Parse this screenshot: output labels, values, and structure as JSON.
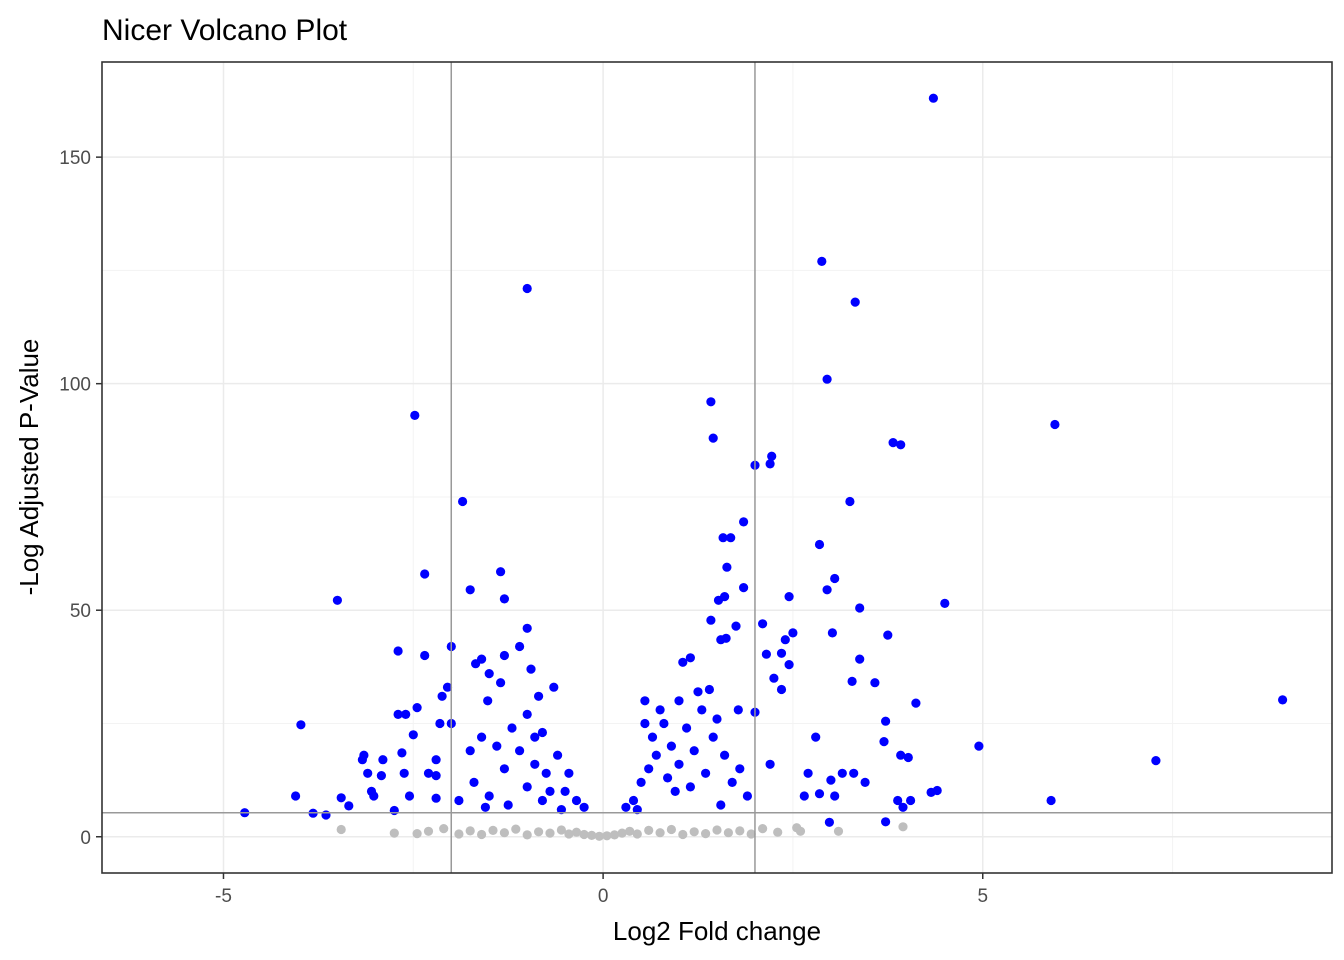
{
  "chart_data": {
    "type": "scatter",
    "title": "Nicer Volcano Plot",
    "xlabel": "Log2 Fold change",
    "ylabel": "-Log Adjusted P-Value",
    "xlim": [
      -6.6,
      9.6
    ],
    "ylim": [
      -8,
      171
    ],
    "x_ticks": [
      -5,
      0,
      5
    ],
    "y_ticks": [
      0,
      50,
      100,
      150
    ],
    "x_minor_grid": [
      -7.5,
      -2.5,
      2.5,
      7.5
    ],
    "y_minor_grid": [
      25,
      75,
      125
    ],
    "grid": true,
    "legend": "none",
    "thresholds": {
      "log2fc": [
        -2,
        2
      ],
      "neg_log_padj": 5.3
    },
    "colors": {
      "significant": "#0000ff",
      "not_significant": "#bebebe",
      "threshold_line": "#999999",
      "grid_major": "#ebebeb",
      "grid_minor": "#f3f3f3",
      "panel_border": "#333333"
    },
    "series": [
      {
        "color": "#bebebe",
        "points": [
          [
            -3.45,
            1.6
          ],
          [
            -2.75,
            0.8
          ],
          [
            -2.45,
            0.7
          ],
          [
            -2.3,
            1.2
          ],
          [
            -2.1,
            1.8
          ],
          [
            -1.9,
            0.6
          ],
          [
            -1.75,
            1.3
          ],
          [
            -1.6,
            0.5
          ],
          [
            -1.45,
            1.4
          ],
          [
            -1.3,
            0.9
          ],
          [
            -1.15,
            1.7
          ],
          [
            -1.0,
            0.4
          ],
          [
            -0.85,
            1.1
          ],
          [
            -0.7,
            0.8
          ],
          [
            -0.55,
            1.5
          ],
          [
            -0.45,
            0.6
          ],
          [
            -0.35,
            1.0
          ],
          [
            -0.25,
            0.5
          ],
          [
            -0.15,
            0.3
          ],
          [
            -0.05,
            0.1
          ],
          [
            0.05,
            0.2
          ],
          [
            0.15,
            0.4
          ],
          [
            0.25,
            0.8
          ],
          [
            0.35,
            1.2
          ],
          [
            0.45,
            0.6
          ],
          [
            0.6,
            1.4
          ],
          [
            0.75,
            0.9
          ],
          [
            0.9,
            1.6
          ],
          [
            1.05,
            0.5
          ],
          [
            1.2,
            1.1
          ],
          [
            1.35,
            0.7
          ],
          [
            1.5,
            1.5
          ],
          [
            1.65,
            0.9
          ],
          [
            1.8,
            1.3
          ],
          [
            1.95,
            0.6
          ],
          [
            2.1,
            1.8
          ],
          [
            2.3,
            1.0
          ],
          [
            2.55,
            2.0
          ],
          [
            2.6,
            1.2
          ],
          [
            3.1,
            1.2
          ],
          [
            3.95,
            2.2
          ]
        ]
      },
      {
        "color": "#0000ff",
        "points": [
          [
            4.35,
            163
          ],
          [
            2.88,
            127
          ],
          [
            -1.0,
            121
          ],
          [
            3.32,
            118
          ],
          [
            2.95,
            101
          ],
          [
            1.42,
            96
          ],
          [
            -2.48,
            93
          ],
          [
            5.95,
            91
          ],
          [
            1.45,
            88
          ],
          [
            3.82,
            87
          ],
          [
            3.92,
            86.5
          ],
          [
            2.22,
            84
          ],
          [
            2.2,
            82.3
          ],
          [
            2.0,
            82
          ],
          [
            -1.85,
            74
          ],
          [
            3.25,
            74
          ],
          [
            1.85,
            69.5
          ],
          [
            1.68,
            66
          ],
          [
            1.58,
            66
          ],
          [
            2.85,
            64.5
          ],
          [
            1.63,
            59.5
          ],
          [
            -1.35,
            58.5
          ],
          [
            -2.35,
            58
          ],
          [
            3.05,
            57
          ],
          [
            1.85,
            55
          ],
          [
            2.95,
            54.5
          ],
          [
            -1.75,
            54.5
          ],
          [
            -3.5,
            52.2
          ],
          [
            1.6,
            53
          ],
          [
            2.45,
            53
          ],
          [
            1.52,
            52.2
          ],
          [
            4.5,
            51.5
          ],
          [
            3.38,
            50.5
          ],
          [
            -1.3,
            52.5
          ],
          [
            1.42,
            47.8
          ],
          [
            1.75,
            46.5
          ],
          [
            2.1,
            47
          ],
          [
            2.5,
            45
          ],
          [
            3.02,
            45
          ],
          [
            -1.0,
            46
          ],
          [
            1.55,
            43.5
          ],
          [
            2.4,
            43.5
          ],
          [
            1.62,
            43.8
          ],
          [
            3.75,
            44.5
          ],
          [
            -2.0,
            42
          ],
          [
            -1.1,
            42
          ],
          [
            -2.7,
            41
          ],
          [
            2.35,
            40.5
          ],
          [
            2.15,
            40.3
          ],
          [
            -1.3,
            40
          ],
          [
            -2.35,
            40
          ],
          [
            -1.6,
            39.2
          ],
          [
            3.38,
            39.2
          ],
          [
            -0.95,
            37
          ],
          [
            2.45,
            38
          ],
          [
            1.05,
            38.5
          ],
          [
            1.15,
            39.5
          ],
          [
            -1.68,
            38.2
          ],
          [
            -1.5,
            36
          ],
          [
            -1.35,
            34
          ],
          [
            3.28,
            34.3
          ],
          [
            3.58,
            34
          ],
          [
            2.25,
            35
          ],
          [
            -2.05,
            33
          ],
          [
            -0.65,
            33
          ],
          [
            -2.12,
            31
          ],
          [
            -0.85,
            31
          ],
          [
            -1.52,
            30
          ],
          [
            1.4,
            32.5
          ],
          [
            2.35,
            32.5
          ],
          [
            -2.45,
            28.5
          ],
          [
            -2.7,
            27
          ],
          [
            -2.6,
            27
          ],
          [
            1.78,
            28
          ],
          [
            2.0,
            27.5
          ],
          [
            4.12,
            29.5
          ],
          [
            8.95,
            30.2
          ],
          [
            -2.0,
            25
          ],
          [
            -2.15,
            25
          ],
          [
            -3.98,
            24.7
          ],
          [
            -2.5,
            22.5
          ],
          [
            -3.15,
            18
          ],
          [
            -3.17,
            17
          ],
          [
            -2.9,
            17
          ],
          [
            -2.65,
            18.5
          ],
          [
            -2.2,
            17
          ],
          [
            2.8,
            22
          ],
          [
            3.72,
            25.5
          ],
          [
            3.7,
            21
          ],
          [
            4.95,
            20
          ],
          [
            3.92,
            18
          ],
          [
            4.02,
            17.5
          ],
          [
            7.28,
            16.8
          ],
          [
            -3.1,
            14
          ],
          [
            -2.92,
            13.5
          ],
          [
            -2.62,
            14
          ],
          [
            -2.3,
            14
          ],
          [
            -2.2,
            13.5
          ],
          [
            2.2,
            16
          ],
          [
            2.7,
            14
          ],
          [
            3.15,
            14
          ],
          [
            3.3,
            14
          ],
          [
            3.0,
            12.5
          ],
          [
            3.45,
            12
          ],
          [
            -3.05,
            10
          ],
          [
            -3.02,
            9
          ],
          [
            -2.55,
            9
          ],
          [
            -2.2,
            8.5
          ],
          [
            -4.05,
            9
          ],
          [
            -3.45,
            8.6
          ],
          [
            -3.35,
            6.8
          ],
          [
            -3.82,
            5.2
          ],
          [
            -3.65,
            4.8
          ],
          [
            -4.72,
            5.3
          ],
          [
            -2.75,
            5.8
          ],
          [
            2.85,
            9.5
          ],
          [
            3.05,
            9
          ],
          [
            2.65,
            9
          ],
          [
            3.88,
            8
          ],
          [
            4.05,
            8
          ],
          [
            3.95,
            6.5
          ],
          [
            4.32,
            9.8
          ],
          [
            4.4,
            10.2
          ],
          [
            5.9,
            8
          ],
          [
            3.72,
            3.3
          ],
          [
            2.98,
            3.2
          ],
          [
            -1.9,
            8
          ],
          [
            -1.7,
            12
          ],
          [
            -1.5,
            9
          ],
          [
            -1.3,
            15
          ],
          [
            -1.25,
            7
          ],
          [
            -1.1,
            19
          ],
          [
            -1.0,
            11
          ],
          [
            -0.9,
            22
          ],
          [
            -0.8,
            8
          ],
          [
            -0.75,
            14
          ],
          [
            -0.6,
            18
          ],
          [
            -0.5,
            10
          ],
          [
            -0.45,
            14
          ],
          [
            -0.35,
            8
          ],
          [
            -0.25,
            6.5
          ],
          [
            -0.9,
            16
          ],
          [
            -1.4,
            20
          ],
          [
            -1.2,
            24
          ],
          [
            -1.75,
            19
          ],
          [
            -0.7,
            10
          ],
          [
            -1.55,
            6.5
          ],
          [
            -0.55,
            6
          ],
          [
            0.3,
            6.5
          ],
          [
            0.4,
            8
          ],
          [
            0.5,
            12
          ],
          [
            0.6,
            15
          ],
          [
            0.7,
            18
          ],
          [
            0.65,
            22
          ],
          [
            0.8,
            25
          ],
          [
            0.9,
            20
          ],
          [
            1.0,
            16
          ],
          [
            1.1,
            24
          ],
          [
            1.2,
            19
          ],
          [
            1.3,
            28
          ],
          [
            1.35,
            14
          ],
          [
            1.45,
            22
          ],
          [
            1.6,
            18
          ],
          [
            1.7,
            12
          ],
          [
            1.8,
            15
          ],
          [
            1.9,
            9
          ],
          [
            0.55,
            30
          ],
          [
            0.75,
            28
          ],
          [
            1.0,
            30
          ],
          [
            1.25,
            32
          ],
          [
            0.45,
            6
          ],
          [
            0.95,
            10
          ],
          [
            1.55,
            7
          ],
          [
            0.85,
            13
          ],
          [
            1.15,
            11
          ],
          [
            -1.0,
            27
          ],
          [
            -0.8,
            23
          ],
          [
            -1.6,
            22
          ],
          [
            0.55,
            25
          ],
          [
            1.5,
            26
          ]
        ]
      }
    ]
  }
}
